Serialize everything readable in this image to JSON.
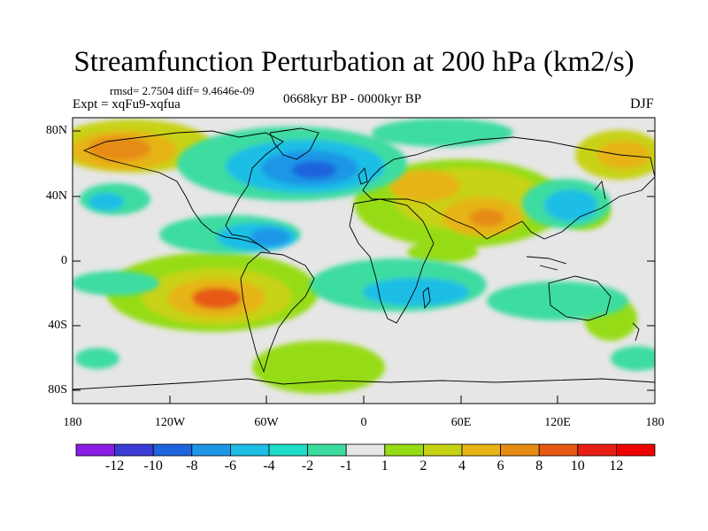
{
  "title": "Streamfunction Perturbation at 200 hPa (km2/s)",
  "subtitle_stats": "rmsd= 2.7504 diff= 9.4646e-09",
  "experiment": "Expt = xqFu9-xqfua",
  "period": "0668kyr BP - 0000kyr BP",
  "season": "DJF",
  "y_axis_labels": [
    "80N",
    "40N",
    "0",
    "40S",
    "80S"
  ],
  "x_axis_labels": [
    "180",
    "120W",
    "60W",
    "0",
    "60E",
    "120E",
    "180"
  ],
  "colorbar": {
    "labels": [
      "-12",
      "-10",
      "-8",
      "-6",
      "-4",
      "-2",
      "-1",
      "1",
      "2",
      "4",
      "6",
      "8",
      "10",
      "12"
    ],
    "colors": [
      "#8a1ee6",
      "#3b3bd6",
      "#1e64dc",
      "#1e96e6",
      "#1ebee6",
      "#1edcc8",
      "#3cdca0",
      "#e6e6e6",
      "#96dc14",
      "#c8d214",
      "#e6b414",
      "#e68c14",
      "#e65a14",
      "#e61e14",
      "#f00000"
    ]
  },
  "colors": {
    "land_outline": "#000000",
    "background": "#e8e8e8"
  }
}
